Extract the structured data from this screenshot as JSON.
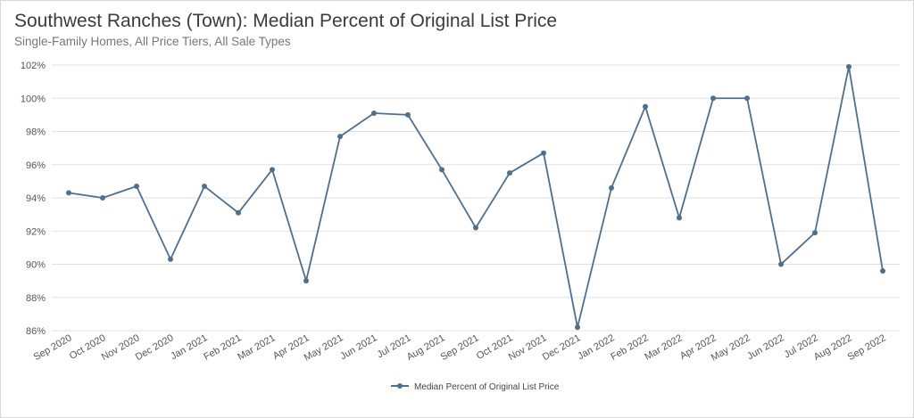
{
  "header": {
    "title": "Southwest Ranches (Town): Median Percent of Original List Price",
    "subtitle": "Single-Family Homes, All Price Tiers, All Sale Types"
  },
  "chart_data": {
    "type": "line",
    "title": "Southwest Ranches (Town): Median Percent of Original List Price",
    "subtitle": "Single-Family Homes, All Price Tiers, All Sale Types",
    "xlabel": "",
    "ylabel": "",
    "ylim": [
      86,
      102
    ],
    "y_ticks": [
      "86%",
      "88%",
      "90%",
      "92%",
      "94%",
      "96%",
      "98%",
      "100%",
      "102%"
    ],
    "grid": true,
    "legend_position": "bottom",
    "color": "#4f6f8f",
    "categories": [
      "Sep 2020",
      "Oct 2020",
      "Nov 2020",
      "Dec 2020",
      "Jan 2021",
      "Feb 2021",
      "Mar 2021",
      "Apr 2021",
      "May 2021",
      "Jun 2021",
      "Jul 2021",
      "Aug 2021",
      "Sep 2021",
      "Oct 2021",
      "Nov 2021",
      "Dec 2021",
      "Jan 2022",
      "Feb 2022",
      "Mar 2022",
      "Apr 2022",
      "May 2022",
      "Jun 2022",
      "Jul 2022",
      "Aug 2022",
      "Sep 2022"
    ],
    "series": [
      {
        "name": "Median Percent of Original List Price",
        "values": [
          94.3,
          94.0,
          94.7,
          90.3,
          94.7,
          93.1,
          95.7,
          89.0,
          97.7,
          99.1,
          99.0,
          95.7,
          92.2,
          95.5,
          96.7,
          86.2,
          94.6,
          99.5,
          92.8,
          100.0,
          100.0,
          90.0,
          91.9,
          101.9,
          89.6
        ]
      }
    ]
  }
}
